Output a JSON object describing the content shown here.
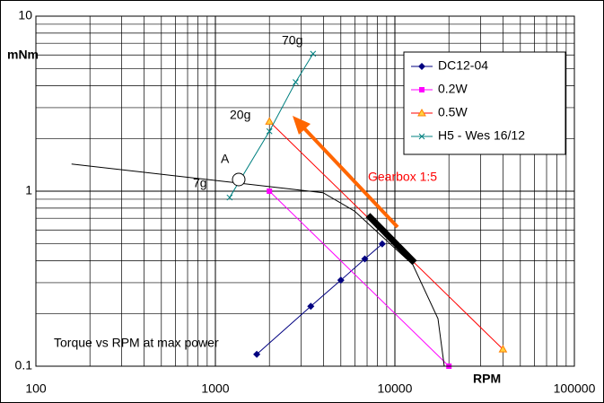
{
  "chart_data": {
    "type": "line",
    "title": "Torque vs RPM at max power",
    "x_label": "RPM",
    "y_label": "mNm",
    "log_x": true,
    "log_y": true,
    "grid": true,
    "xlim": [
      100,
      100000
    ],
    "xticks": [
      100,
      1000,
      10000,
      100000
    ],
    "ylim": [
      0.1,
      10
    ],
    "yticks": [
      0.1,
      1,
      10
    ],
    "legend": "upper right",
    "annotations": [
      "70g",
      "20g",
      "7g",
      "A",
      "Gearbox 1:5"
    ],
    "series": [
      {
        "name": "DC12-04",
        "color": "#000080",
        "marker": "diamond",
        "x": [
          1700,
          3400,
          5000,
          6800,
          8500
        ],
        "values": [
          0.117,
          0.22,
          0.31,
          0.41,
          0.5
        ]
      },
      {
        "name": "0.2W",
        "color": "#ff00ff",
        "marker": "square",
        "x": [
          2000,
          20000
        ],
        "values": [
          1.0,
          0.1
        ]
      },
      {
        "name": "0.5W",
        "color": "#ff0000",
        "marker_color": "#ff8000",
        "marker": "triangle",
        "x": [
          2000,
          40000
        ],
        "values": [
          2.5,
          0.125
        ]
      },
      {
        "name": "H5 - Wes 16/12",
        "color": "#008080",
        "marker": "x",
        "x": [
          1200,
          2000,
          2800,
          3500
        ],
        "values": [
          0.92,
          2.2,
          4.2,
          6.1
        ]
      },
      {
        "color": "#000000",
        "line_width": 1,
        "x": [
          158,
          3981,
          5957,
          12589,
          17378,
          18836
        ],
        "values": [
          1.43,
          0.98,
          0.77,
          0.38,
          0.187,
          0.1
        ]
      },
      {
        "color": "#000000",
        "line_width": 7,
        "x": [
          7079,
          12882
        ],
        "values": [
          0.73,
          0.39
        ]
      }
    ]
  }
}
